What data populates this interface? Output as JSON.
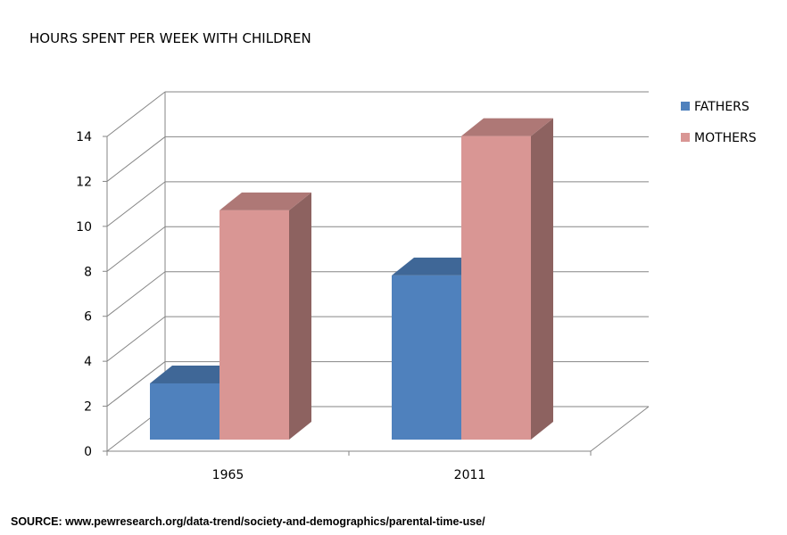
{
  "chart_data": {
    "type": "bar",
    "style": "3d-clustered-column",
    "title": "HOURS SPENT PER WEEK WITH CHILDREN",
    "categories": [
      "1965",
      "2011"
    ],
    "series": [
      {
        "name": "FATHERS",
        "values": [
          2.5,
          7.3
        ],
        "color": "#4F81BD"
      },
      {
        "name": "MOTHERS",
        "values": [
          10.2,
          13.5
        ],
        "color": "#D99694"
      }
    ],
    "ylim": [
      0,
      14
    ],
    "yticks": [
      0,
      2,
      4,
      6,
      8,
      10,
      12,
      14
    ],
    "grid": true,
    "legend": "right",
    "xlabel": "",
    "ylabel": ""
  },
  "source": "SOURCE: www.pewresearch.org/data-trend/society-and-demographics/parental-time-use/"
}
